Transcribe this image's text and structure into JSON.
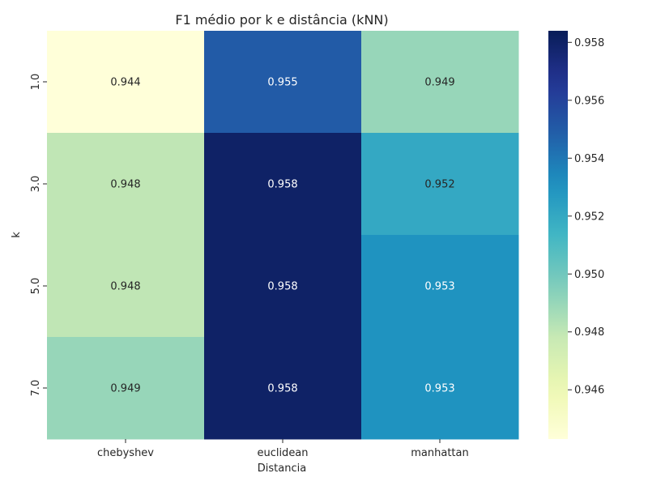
{
  "chart_data": {
    "type": "heatmap",
    "title": "F1 médio por k e distância (kNN)",
    "xlabel": "Distancia",
    "ylabel": "k",
    "x_categories": [
      "chebyshev",
      "euclidean",
      "manhattan"
    ],
    "y_categories": [
      "1.0",
      "3.0",
      "5.0",
      "7.0"
    ],
    "values": [
      [
        0.944,
        0.955,
        0.949
      ],
      [
        0.948,
        0.958,
        0.952
      ],
      [
        0.948,
        0.958,
        0.953
      ],
      [
        0.949,
        0.958,
        0.953
      ]
    ],
    "cell_labels": [
      [
        "0.944",
        "0.955",
        "0.949"
      ],
      [
        "0.948",
        "0.958",
        "0.952"
      ],
      [
        "0.948",
        "0.958",
        "0.953"
      ],
      [
        "0.949",
        "0.958",
        "0.953"
      ]
    ],
    "colormap": "YlGnBu",
    "vmin": 0.9443,
    "vmax": 0.9584,
    "colorbar_ticks": [
      "0.946",
      "0.948",
      "0.950",
      "0.952",
      "0.954",
      "0.956",
      "0.958"
    ]
  }
}
